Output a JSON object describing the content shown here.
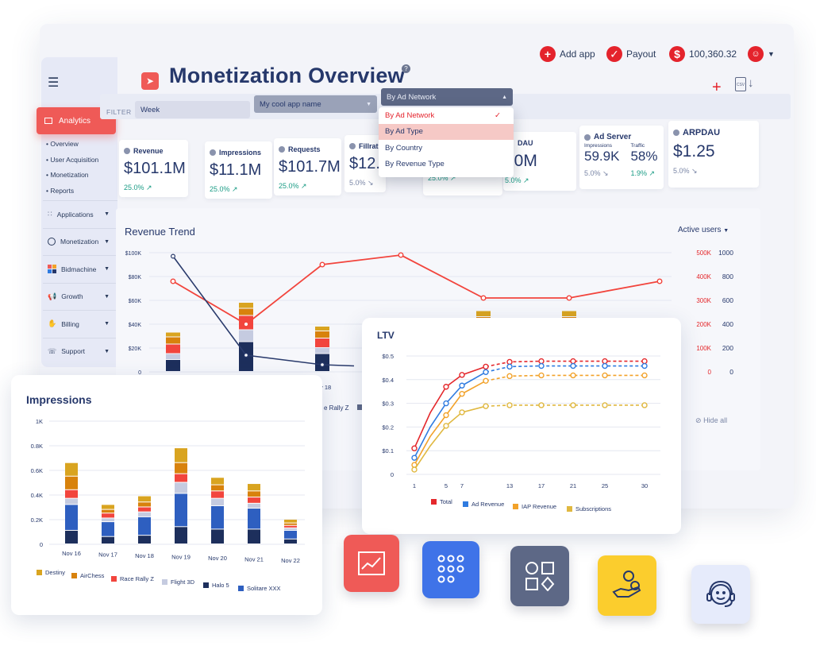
{
  "header": {
    "title": "Monetization Overview",
    "actions": [
      {
        "label": "Add app",
        "icon": "plus-icon"
      },
      {
        "label": "Payout",
        "icon": "check-icon"
      },
      {
        "label": "100,360.32",
        "icon": "dollar-icon"
      }
    ],
    "profile_icon": "user-avatar-icon"
  },
  "sidebar": {
    "active": "Analytics",
    "sub_items": [
      "• Overview",
      "• User Acquisition",
      "• Monetization",
      "• Reports"
    ],
    "items": [
      {
        "label": "Applications",
        "icon": "grid-icon"
      },
      {
        "label": "Monetization",
        "icon": "pie-icon"
      },
      {
        "label": "Bidmachine",
        "icon": "blocks-icon"
      },
      {
        "label": "Growth",
        "icon": "megaphone-icon"
      },
      {
        "label": "Billing",
        "icon": "hand-coin-icon"
      },
      {
        "label": "Support",
        "icon": "headset-icon"
      }
    ]
  },
  "filter": {
    "label": "FILTER",
    "period": "Week",
    "app": "My cool app name",
    "group_by": "By Ad Network",
    "options": [
      "By Ad Network",
      "By Ad Type",
      "By Country",
      "By Revenue Type"
    ],
    "selected_option": "By Ad Network",
    "hovered_option": "By Ad Type"
  },
  "kpis": [
    {
      "title": "Revenue",
      "value": "$101.1M",
      "delta": "25.0% ↗",
      "trend": "up"
    },
    {
      "title": "Impressions",
      "value": "$11.1M",
      "delta": "25.0% ↗",
      "trend": "up"
    },
    {
      "title": "Requests",
      "value": "$101.7M",
      "delta": "25.0% ↗",
      "trend": "up"
    },
    {
      "title": "Fillrat",
      "value": "$12.5",
      "delta": "5.0% ↘",
      "trend": "down"
    },
    {
      "title": "",
      "value": "",
      "delta": "25.0% ↗",
      "trend": "up"
    },
    {
      "title": "DAU",
      "value": "00M",
      "delta": "5.0% ↗",
      "trend": "up"
    }
  ],
  "ad_server": {
    "title": "Ad Server",
    "sub1_label": "Impressions",
    "sub1_value": "59.9K",
    "sub1_delta": "5.0% ↘",
    "sub2_label": "Traffic",
    "sub2_value": "58%",
    "sub2_delta": "1.9% ↗"
  },
  "arpdau": {
    "title": "ARPDAU",
    "value": "$1.25",
    "delta": "5.0% ↘"
  },
  "revenue_trend": {
    "title": "Revenue Trend",
    "toggle": "Active users",
    "y_left_ticks": [
      "$100K",
      "$80K",
      "$60K",
      "$40K",
      "$20K",
      "0"
    ],
    "y_right_a": [
      "500K",
      "400K",
      "300K",
      "200K",
      "100K",
      "0"
    ],
    "y_right_b": [
      "1000",
      "800",
      "600",
      "400",
      "200",
      "0"
    ],
    "visible_x_label": "ov 18",
    "legend_fragment": "e Rally Z",
    "hide_all": "Hide all"
  },
  "colors": {
    "destiny": "#d9a420",
    "airchess": "#d8820c",
    "race_rally": "#f2453d",
    "flight3d": "#c5cbe0",
    "halo5": "#1d2f5c",
    "solitaire": "#2e5fc0",
    "accent_red": "#ef5a57",
    "total": "#e4282c",
    "ad_revenue": "#2f7be0",
    "iap_revenue": "#f2a22a",
    "subscriptions": "#e0b840"
  },
  "chart_data": [
    {
      "type": "bar",
      "title": "Impressions",
      "categories": [
        "Nov 16",
        "Nov 17",
        "Nov 18",
        "Nov 19",
        "Nov 20",
        "Nov 21",
        "Nov 22"
      ],
      "y_ticks": [
        "1K",
        "0.8K",
        "0.6K",
        "0.4K",
        "0.2K",
        "0"
      ],
      "ylim": [
        0,
        1000
      ],
      "series": [
        {
          "name": "Halo 5",
          "values": [
            110,
            60,
            70,
            140,
            120,
            120,
            40
          ]
        },
        {
          "name": "Solitare XXX",
          "values": [
            210,
            120,
            150,
            270,
            190,
            170,
            70
          ]
        },
        {
          "name": "Flight 3D",
          "values": [
            50,
            30,
            40,
            90,
            60,
            40,
            20
          ]
        },
        {
          "name": "Race Rally Z",
          "values": [
            70,
            40,
            40,
            70,
            60,
            50,
            20
          ]
        },
        {
          "name": "AirChess",
          "values": [
            110,
            30,
            40,
            90,
            50,
            50,
            20
          ]
        },
        {
          "name": "Destiny",
          "values": [
            110,
            40,
            50,
            120,
            60,
            60,
            30
          ]
        }
      ],
      "legend_order": [
        "Destiny",
        "AirChess",
        "Race Rally Z",
        "Flight 3D",
        "Halo 5",
        "Solitare XXX"
      ]
    },
    {
      "type": "line",
      "title": "LTV",
      "x": [
        1,
        3,
        5,
        7,
        10,
        13,
        17,
        21,
        25,
        30
      ],
      "x_ticks": [
        "1",
        "5",
        "7",
        "13",
        "17",
        "21",
        "25",
        "30"
      ],
      "y_ticks": [
        "$0.5",
        "$0.4",
        "$0.3",
        "$0.2",
        "$0.1",
        "0"
      ],
      "ylim": [
        0,
        0.5
      ],
      "series": [
        {
          "name": "Total",
          "values": [
            0.11,
            0.26,
            0.37,
            0.42,
            0.455,
            0.475,
            0.478,
            0.478,
            0.478,
            0.478
          ]
        },
        {
          "name": "Ad Revenue",
          "values": [
            0.07,
            0.2,
            0.3,
            0.375,
            0.432,
            0.455,
            0.458,
            0.458,
            0.458,
            0.458
          ]
        },
        {
          "name": "IAP Revenue",
          "values": [
            0.04,
            0.16,
            0.25,
            0.34,
            0.395,
            0.415,
            0.418,
            0.418,
            0.418,
            0.418
          ]
        },
        {
          "name": "Subscriptions",
          "values": [
            0.02,
            0.12,
            0.205,
            0.262,
            0.288,
            0.292,
            0.292,
            0.292,
            0.292,
            0.292
          ]
        }
      ]
    },
    {
      "type": "bar",
      "title": "Revenue Trend",
      "ylim": [
        0,
        100000
      ],
      "y2lim": [
        0,
        500000
      ],
      "y3lim": [
        0,
        1000
      ],
      "stack_values": [
        [
          10000,
          25000,
          15000,
          10000,
          15000,
          20000
        ],
        [
          5000,
          10000,
          5000,
          10000,
          15000,
          10000
        ],
        [
          8000,
          12000,
          8000,
          6000,
          10000,
          10000
        ],
        [
          6000,
          6000,
          6000,
          4000,
          6000,
          6000
        ],
        [
          4000,
          5000,
          4000,
          3000,
          5000,
          5000
        ]
      ],
      "line_values": [
        380000,
        200000,
        450000,
        490000,
        310000,
        310000,
        380000
      ],
      "dark_line_values": [
        970,
        140,
        60,
        50
      ]
    }
  ],
  "tiles": [
    {
      "name": "analytics-tile",
      "icon": "chart-up-icon"
    },
    {
      "name": "apps-tile",
      "icon": "grid-icon"
    },
    {
      "name": "shapes-tile",
      "icon": "shapes-icon"
    },
    {
      "name": "billing-tile",
      "icon": "hand-coin-icon"
    },
    {
      "name": "support-tile",
      "icon": "headset-icon"
    }
  ]
}
